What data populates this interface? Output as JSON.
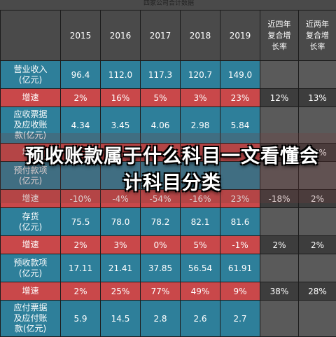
{
  "top_caption": "四家公司合计数据",
  "header": [
    "",
    "2015",
    "2016",
    "2017",
    "2018",
    "2019",
    "近四年复合增长率",
    "近两年复合增长率"
  ],
  "rows": [
    {
      "label": "营业收入\n(亿元)",
      "kind": "value",
      "values": [
        "96.4",
        "112.0",
        "117.3",
        "120.7",
        "149.0"
      ],
      "extra": [
        "",
        ""
      ]
    },
    {
      "label": "增速",
      "kind": "growth",
      "values": [
        "2%",
        "16%",
        "5%",
        "3%",
        "23%"
      ],
      "extra": [
        "12%",
        "13%"
      ]
    },
    {
      "label": "应收票据\n及应收账\n款(亿元)",
      "kind": "value",
      "values": [
        "4.34",
        "3.45",
        "4.06",
        "2.98",
        "5.84"
      ],
      "extra": [
        "",
        ""
      ]
    },
    {
      "label": "增速",
      "kind": "growth",
      "values": [
        "",
        "",
        "",
        "",
        ""
      ],
      "extra": [
        "",
        "20%"
      ]
    },
    {
      "label": "预付款项\n(亿元)",
      "kind": "value",
      "values": [
        "",
        "",
        "",
        "",
        ""
      ],
      "extra": [
        "",
        ""
      ]
    },
    {
      "label": "增速",
      "kind": "growth",
      "values": [
        "-10%",
        "-4%",
        "-54%",
        "-16%",
        "23%"
      ],
      "extra": [
        "-18%",
        "2%"
      ]
    },
    {
      "label": "存货\n(亿元)",
      "kind": "value",
      "values": [
        "75.5",
        "78.0",
        "78.2",
        "82.1",
        "81.6"
      ],
      "extra": [
        "",
        ""
      ]
    },
    {
      "label": "增速",
      "kind": "growth",
      "values": [
        "2%",
        "3%",
        "0%",
        "5%",
        "-1%"
      ],
      "extra": [
        "2%",
        "2%"
      ]
    },
    {
      "label": "预收款项\n(亿元)",
      "kind": "value",
      "values": [
        "17.11",
        "21.41",
        "37.85",
        "56.54",
        "61.91"
      ],
      "extra": [
        "",
        ""
      ]
    },
    {
      "label": "增速",
      "kind": "growth",
      "values": [
        "2%",
        "25%",
        "77%",
        "49%",
        "9%"
      ],
      "extra": [
        "38%",
        "28%"
      ]
    },
    {
      "label": "应付票据\n及应付账\n款(亿元)",
      "kind": "value",
      "values": [
        "5.9",
        "14.5",
        "2.8",
        "2.6",
        "2.7"
      ],
      "extra": [
        "",
        ""
      ]
    }
  ],
  "overlay_title": "预收账款属于什么科目一文看懂会计科目分类"
}
